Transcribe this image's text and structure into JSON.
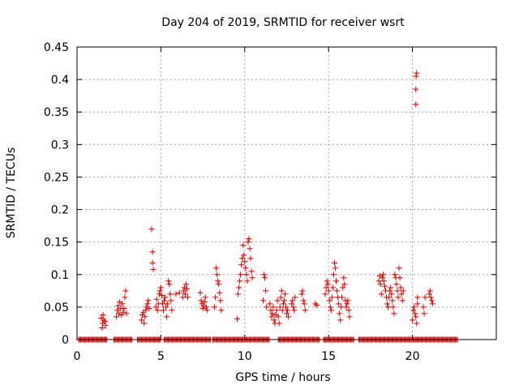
{
  "chart_data": {
    "type": "scatter",
    "title": "Day 204 of 2019, SRMTID for receiver wsrt",
    "xlabel": "GPS time / hours",
    "ylabel": "SRMTID / TECUs",
    "xlim": [
      0,
      25
    ],
    "ylim": [
      0,
      0.45
    ],
    "xticks": [
      0,
      5,
      10,
      15,
      20
    ],
    "yticks": [
      0,
      0.05,
      0.1,
      0.15,
      0.2,
      0.25,
      0.3,
      0.35,
      0.4,
      0.45
    ],
    "ytick_labels": [
      "0",
      "0.05",
      "0.1",
      "0.15",
      "0.2",
      "0.25",
      "0.3",
      "0.35",
      "0.4",
      "0.45"
    ],
    "grid": true,
    "marker": "+",
    "color": "#dd0000",
    "series": [
      {
        "name": "SRMTID",
        "points": [
          [
            1.45,
            0.033
          ],
          [
            1.5,
            0.018
          ],
          [
            1.52,
            0.025
          ],
          [
            1.55,
            0.038
          ],
          [
            1.6,
            0.03
          ],
          [
            1.65,
            0.028
          ],
          [
            1.7,
            0.022
          ],
          [
            2.35,
            0.035
          ],
          [
            2.4,
            0.045
          ],
          [
            2.45,
            0.052
          ],
          [
            2.5,
            0.04
          ],
          [
            2.55,
            0.058
          ],
          [
            2.6,
            0.048
          ],
          [
            2.65,
            0.038
          ],
          [
            2.7,
            0.055
          ],
          [
            2.75,
            0.042
          ],
          [
            2.8,
            0.048
          ],
          [
            2.85,
            0.065
          ],
          [
            2.9,
            0.075
          ],
          [
            2.95,
            0.04
          ],
          [
            3.85,
            0.03
          ],
          [
            3.9,
            0.038
          ],
          [
            3.95,
            0.042
          ],
          [
            4.0,
            0.025
          ],
          [
            4.05,
            0.035
          ],
          [
            4.1,
            0.045
          ],
          [
            4.15,
            0.05
          ],
          [
            4.2,
            0.055
          ],
          [
            4.25,
            0.06
          ],
          [
            4.3,
            0.048
          ],
          [
            4.45,
            0.17
          ],
          [
            4.5,
            0.135
          ],
          [
            4.5,
            0.118
          ],
          [
            4.55,
            0.108
          ],
          [
            4.7,
            0.05
          ],
          [
            4.75,
            0.062
          ],
          [
            4.8,
            0.045
          ],
          [
            4.85,
            0.055
          ],
          [
            4.9,
            0.07
          ],
          [
            4.95,
            0.075
          ],
          [
            5.0,
            0.08
          ],
          [
            5.05,
            0.068
          ],
          [
            5.1,
            0.055
          ],
          [
            5.15,
            0.045
          ],
          [
            5.2,
            0.06
          ],
          [
            5.25,
            0.065
          ],
          [
            5.3,
            0.05
          ],
          [
            5.35,
            0.035
          ],
          [
            5.4,
            0.055
          ],
          [
            5.45,
            0.09
          ],
          [
            5.5,
            0.085
          ],
          [
            5.55,
            0.07
          ],
          [
            5.6,
            0.06
          ],
          [
            5.65,
            0.045
          ],
          [
            5.9,
            0.07
          ],
          [
            6.1,
            0.072
          ],
          [
            6.3,
            0.065
          ],
          [
            6.35,
            0.075
          ],
          [
            6.4,
            0.08
          ],
          [
            6.45,
            0.07
          ],
          [
            6.5,
            0.085
          ],
          [
            6.55,
            0.078
          ],
          [
            6.6,
            0.065
          ],
          [
            7.35,
            0.072
          ],
          [
            7.4,
            0.06
          ],
          [
            7.45,
            0.055
          ],
          [
            7.5,
            0.048
          ],
          [
            7.55,
            0.052
          ],
          [
            7.6,
            0.058
          ],
          [
            7.65,
            0.065
          ],
          [
            7.7,
            0.05
          ],
          [
            7.75,
            0.045
          ],
          [
            8.2,
            0.05
          ],
          [
            8.25,
            0.065
          ],
          [
            8.3,
            0.11
          ],
          [
            8.35,
            0.1
          ],
          [
            8.4,
            0.09
          ],
          [
            8.45,
            0.085
          ],
          [
            8.5,
            0.072
          ],
          [
            8.55,
            0.06
          ],
          [
            8.6,
            0.045
          ],
          [
            9.55,
            0.032
          ],
          [
            9.6,
            0.07
          ],
          [
            9.65,
            0.08
          ],
          [
            9.7,
            0.09
          ],
          [
            9.75,
            0.1
          ],
          [
            9.8,
            0.115
          ],
          [
            9.85,
            0.125
          ],
          [
            9.9,
            0.145
          ],
          [
            9.95,
            0.13
          ],
          [
            10.0,
            0.12
          ],
          [
            10.05,
            0.11
          ],
          [
            10.1,
            0.1
          ],
          [
            10.15,
            0.09
          ],
          [
            10.2,
            0.15
          ],
          [
            10.25,
            0.155
          ],
          [
            10.3,
            0.14
          ],
          [
            10.35,
            0.125
          ],
          [
            10.4,
            0.105
          ],
          [
            10.45,
            0.095
          ],
          [
            11.1,
            0.06
          ],
          [
            11.15,
            0.1
          ],
          [
            11.2,
            0.095
          ],
          [
            11.25,
            0.075
          ],
          [
            11.3,
            0.05
          ],
          [
            11.5,
            0.055
          ],
          [
            11.55,
            0.045
          ],
          [
            11.6,
            0.035
          ],
          [
            11.65,
            0.04
          ],
          [
            11.7,
            0.05
          ],
          [
            11.75,
            0.03
          ],
          [
            11.8,
            0.025
          ],
          [
            11.85,
            0.038
          ],
          [
            11.9,
            0.045
          ],
          [
            11.95,
            0.06
          ],
          [
            12.0,
            0.035
          ],
          [
            12.05,
            0.025
          ],
          [
            12.1,
            0.05
          ],
          [
            12.15,
            0.065
          ],
          [
            12.2,
            0.075
          ],
          [
            12.25,
            0.045
          ],
          [
            12.3,
            0.055
          ],
          [
            12.35,
            0.06
          ],
          [
            12.4,
            0.07
          ],
          [
            12.45,
            0.05
          ],
          [
            12.5,
            0.04
          ],
          [
            12.55,
            0.045
          ],
          [
            12.6,
            0.035
          ],
          [
            12.8,
            0.055
          ],
          [
            12.85,
            0.06
          ],
          [
            12.9,
            0.05
          ],
          [
            12.95,
            0.045
          ],
          [
            13.0,
            0.065
          ],
          [
            13.4,
            0.07
          ],
          [
            13.45,
            0.075
          ],
          [
            13.5,
            0.06
          ],
          [
            13.55,
            0.055
          ],
          [
            13.6,
            0.045
          ],
          [
            14.2,
            0.055
          ],
          [
            14.3,
            0.053
          ],
          [
            14.8,
            0.07
          ],
          [
            14.85,
            0.08
          ],
          [
            14.9,
            0.09
          ],
          [
            14.95,
            0.085
          ],
          [
            15.0,
            0.075
          ],
          [
            15.05,
            0.06
          ],
          [
            15.1,
            0.05
          ],
          [
            15.15,
            0.045
          ],
          [
            15.2,
            0.065
          ],
          [
            15.25,
            0.08
          ],
          [
            15.3,
            0.1
          ],
          [
            15.35,
            0.118
          ],
          [
            15.4,
            0.11
          ],
          [
            15.45,
            0.09
          ],
          [
            15.5,
            0.075
          ],
          [
            15.55,
            0.065
          ],
          [
            15.6,
            0.055
          ],
          [
            15.65,
            0.04
          ],
          [
            15.7,
            0.03
          ],
          [
            15.75,
            0.05
          ],
          [
            15.8,
            0.065
          ],
          [
            15.85,
            0.08
          ],
          [
            15.9,
            0.095
          ],
          [
            15.95,
            0.085
          ],
          [
            16.0,
            0.06
          ],
          [
            16.05,
            0.05
          ],
          [
            16.1,
            0.055
          ],
          [
            16.15,
            0.06
          ],
          [
            16.2,
            0.045
          ],
          [
            16.25,
            0.035
          ],
          [
            18.0,
            0.09
          ],
          [
            18.05,
            0.098
          ],
          [
            18.1,
            0.085
          ],
          [
            18.15,
            0.07
          ],
          [
            18.2,
            0.095
          ],
          [
            18.25,
            0.1
          ],
          [
            18.3,
            0.09
          ],
          [
            18.35,
            0.082
          ],
          [
            18.4,
            0.075
          ],
          [
            18.45,
            0.065
          ],
          [
            18.5,
            0.055
          ],
          [
            18.55,
            0.05
          ],
          [
            18.6,
            0.065
          ],
          [
            18.65,
            0.075
          ],
          [
            18.7,
            0.08
          ],
          [
            18.75,
            0.07
          ],
          [
            18.8,
            0.06
          ],
          [
            18.85,
            0.05
          ],
          [
            18.9,
            0.04
          ],
          [
            18.95,
            0.1
          ],
          [
            19.0,
            0.095
          ],
          [
            19.05,
            0.085
          ],
          [
            19.1,
            0.075
          ],
          [
            19.15,
            0.065
          ],
          [
            19.2,
            0.11
          ],
          [
            19.25,
            0.095
          ],
          [
            19.3,
            0.08
          ],
          [
            19.35,
            0.07
          ],
          [
            19.4,
            0.06
          ],
          [
            19.45,
            0.075
          ],
          [
            20.0,
            0.03
          ],
          [
            20.05,
            0.045
          ],
          [
            20.1,
            0.05
          ],
          [
            20.15,
            0.04
          ],
          [
            20.2,
            0.035
          ],
          [
            20.25,
            0.025
          ],
          [
            20.3,
            0.065
          ],
          [
            20.3,
            0.055
          ],
          [
            20.22,
            0.405
          ],
          [
            20.25,
            0.41
          ],
          [
            20.2,
            0.385
          ],
          [
            20.2,
            0.362
          ],
          [
            20.65,
            0.05
          ],
          [
            20.7,
            0.04
          ],
          [
            20.75,
            0.065
          ],
          [
            21.0,
            0.07
          ],
          [
            21.05,
            0.075
          ],
          [
            21.1,
            0.065
          ],
          [
            21.15,
            0.06
          ],
          [
            21.2,
            0.055
          ]
        ],
        "zero_runs": [
          [
            0.1,
            1.8
          ],
          [
            2.2,
            3.3
          ],
          [
            3.6,
            5.0
          ],
          [
            5.2,
            8.0
          ],
          [
            8.1,
            11.5
          ],
          [
            12.0,
            14.5
          ],
          [
            14.7,
            16.5
          ],
          [
            16.8,
            22.7
          ]
        ]
      }
    ]
  }
}
